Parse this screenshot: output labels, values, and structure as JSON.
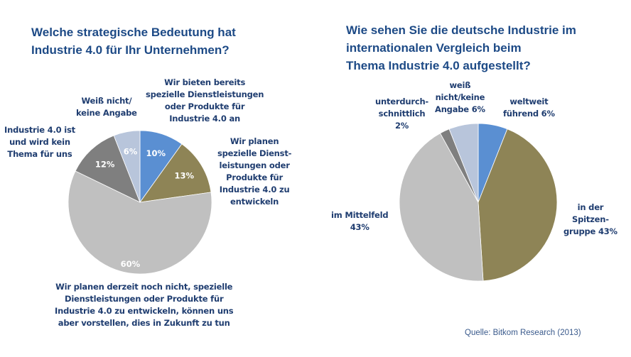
{
  "colors": {
    "title": "#1d4a86",
    "label": "#1f3d70",
    "blue": "#5a8fd2",
    "olive": "#8e8456",
    "light_grey": "#c0c0c0",
    "dark_grey": "#7f7f7f",
    "blue_grey": "#b8c5db"
  },
  "chart_data": [
    {
      "type": "pie",
      "title": "Welche strategische Bedeutung hat Industrie 4.0 für Ihr Unternehmen?",
      "title_lines": [
        "Welche strategische Bedeutung hat",
        "Industrie 4.0 für Ihr Unternehmen?"
      ],
      "unit": "%",
      "start": "12 o'clock, clockwise",
      "slices": [
        {
          "label": "Wir bieten bereits spezielle Dienstleistungen oder Produkte für Industrie 4.0 an",
          "label_lines": [
            "Wir bieten bereits",
            "spezielle Dienstleistungen",
            "oder Produkte für",
            "Industrie 4.0 an"
          ],
          "value": 10,
          "value_label": "10%",
          "color": "#5a8fd2"
        },
        {
          "label": "Wir planen spezielle Dienstleistungen oder Produkte für Industrie 4.0 zu entwickeln",
          "label_lines": [
            "Wir planen",
            "spezielle Dienst-",
            "leistungen oder",
            "Produkte für",
            "Industrie 4.0 zu",
            "entwickeln"
          ],
          "value": 13,
          "value_label": "13%",
          "color": "#8e8456"
        },
        {
          "label": "Wir planen derzeit noch nicht, spezielle Dienstleistungen oder Produkte für Industrie 4.0 zu entwickeln, können uns aber vorstellen, dies in Zukunft zu tun",
          "label_lines": [
            "Wir planen derzeit noch nicht, spezielle",
            "Dienstleistungen oder Produkte für",
            "Industrie 4.0 zu entwickeln, können uns",
            "aber vorstellen, dies in Zukunft zu tun"
          ],
          "value": 60,
          "value_label": "60%",
          "color": "#c0c0c0"
        },
        {
          "label": "Industrie 4.0 ist und wird kein Thema für uns",
          "label_lines": [
            "Industrie 4.0 ist",
            "und wird kein",
            "Thema für uns"
          ],
          "value": 12,
          "value_label": "12%",
          "color": "#7f7f7f"
        },
        {
          "label": "Weiß nicht/keine Angabe",
          "label_lines": [
            "Weiß nicht/",
            "keine Angabe"
          ],
          "value": 6,
          "value_label": "6%",
          "color": "#b8c5db"
        }
      ]
    },
    {
      "type": "pie",
      "title": "Wie sehen Sie die deutsche Industrie im internationalen Vergleich beim Thema Industrie 4.0 aufgestellt?",
      "title_lines": [
        "Wie sehen Sie die deutsche Industrie im",
        "internationalen Vergleich beim",
        "Thema Industrie 4.0 aufgestellt?"
      ],
      "unit": "%",
      "start": "12 o'clock, clockwise",
      "slices": [
        {
          "label": "weltweit führend",
          "label_lines": [
            "weltweit",
            "führend 6%"
          ],
          "value": 6,
          "color": "#5a8fd2"
        },
        {
          "label": "in der Spitzengruppe",
          "label_lines": [
            "in der",
            "Spitzen-",
            "gruppe 43%"
          ],
          "value": 43,
          "color": "#8e8456"
        },
        {
          "label": "im Mittelfeld",
          "label_lines": [
            "im Mittelfeld",
            "43%"
          ],
          "value": 43,
          "color": "#c0c0c0"
        },
        {
          "label": "unterdurchschnittlich",
          "label_lines": [
            "unterdurch-",
            "schnittlich",
            "2%"
          ],
          "value": 2,
          "color": "#7f7f7f"
        },
        {
          "label": "weiß nicht/keine Angabe",
          "label_lines": [
            "weiß",
            "nicht/keine",
            "Angabe 6%"
          ],
          "value": 6,
          "color": "#b8c5db"
        }
      ]
    }
  ],
  "source": "Quelle: Bitkom Research (2013)"
}
